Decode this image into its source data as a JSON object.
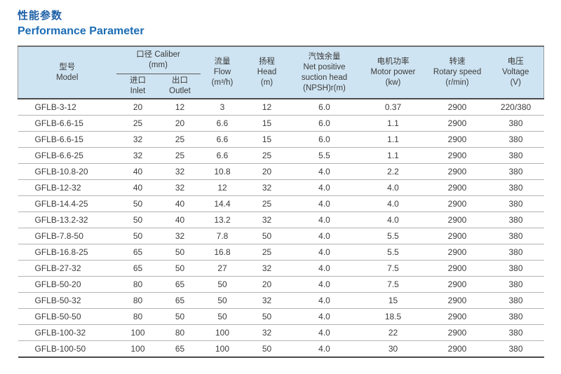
{
  "page": {
    "title_zh": "性能参数",
    "title_en": "Performance Parameter"
  },
  "colors": {
    "title_blue": "#1b6cb5",
    "header_bg": "#cfe4f2",
    "rule_dark": "#4a4a4a",
    "rule_light": "#b3b3b3"
  },
  "table": {
    "headers": {
      "model": "型号\nModel",
      "caliber_group": "口径 Caliber\n(mm)",
      "inlet": "进口\nInlet",
      "outlet": "出口\nOutlet",
      "flow": "流量\nFlow\n(m³/h)",
      "head": "扬程\nHead\n(m)",
      "npsh": "汽蚀余量\nNet positive\nsuction head\n(NPSH)r(m)",
      "motor_power": "电机功率\nMotor power\n(kw)",
      "rotary_speed": "转速\nRotary speed\n(r/min)",
      "voltage": "电压\nVoltage\n(V)"
    },
    "rows": [
      [
        "GFLB-3-12",
        "20",
        "12",
        "3",
        "12",
        "6.0",
        "0.37",
        "2900",
        "220/380"
      ],
      [
        "GFLB-6.6-15",
        "25",
        "20",
        "6.6",
        "15",
        "6.0",
        "1.1",
        "2900",
        "380"
      ],
      [
        "GFLB-6.6-15",
        "32",
        "25",
        "6.6",
        "15",
        "6.0",
        "1.1",
        "2900",
        "380"
      ],
      [
        "GFLB-6.6-25",
        "32",
        "25",
        "6.6",
        "25",
        "5.5",
        "1.1",
        "2900",
        "380"
      ],
      [
        "GFLB-10.8-20",
        "40",
        "32",
        "10.8",
        "20",
        "4.0",
        "2.2",
        "2900",
        "380"
      ],
      [
        "GFLB-12-32",
        "40",
        "32",
        "12",
        "32",
        "4.0",
        "4.0",
        "2900",
        "380"
      ],
      [
        "GFLB-14.4-25",
        "50",
        "40",
        "14.4",
        "25",
        "4.0",
        "4.0",
        "2900",
        "380"
      ],
      [
        "GFLB-13.2-32",
        "50",
        "40",
        "13.2",
        "32",
        "4.0",
        "4.0",
        "2900",
        "380"
      ],
      [
        "GFLB-7.8-50",
        "50",
        "32",
        "7.8",
        "50",
        "4.0",
        "5.5",
        "2900",
        "380"
      ],
      [
        "GFLB-16.8-25",
        "65",
        "50",
        "16.8",
        "25",
        "4.0",
        "5.5",
        "2900",
        "380"
      ],
      [
        "GFLB-27-32",
        "65",
        "50",
        "27",
        "32",
        "4.0",
        "7.5",
        "2900",
        "380"
      ],
      [
        "GFLB-50-20",
        "80",
        "65",
        "50",
        "20",
        "4.0",
        "7.5",
        "2900",
        "380"
      ],
      [
        "GFLB-50-32",
        "80",
        "65",
        "50",
        "32",
        "4.0",
        "15",
        "2900",
        "380"
      ],
      [
        "GFLB-50-50",
        "80",
        "50",
        "50",
        "50",
        "4.0",
        "18.5",
        "2900",
        "380"
      ],
      [
        "GFLB-100-32",
        "100",
        "80",
        "100",
        "32",
        "4.0",
        "22",
        "2900",
        "380"
      ],
      [
        "GFLB-100-50",
        "100",
        "65",
        "100",
        "50",
        "4.0",
        "30",
        "2900",
        "380"
      ]
    ]
  }
}
